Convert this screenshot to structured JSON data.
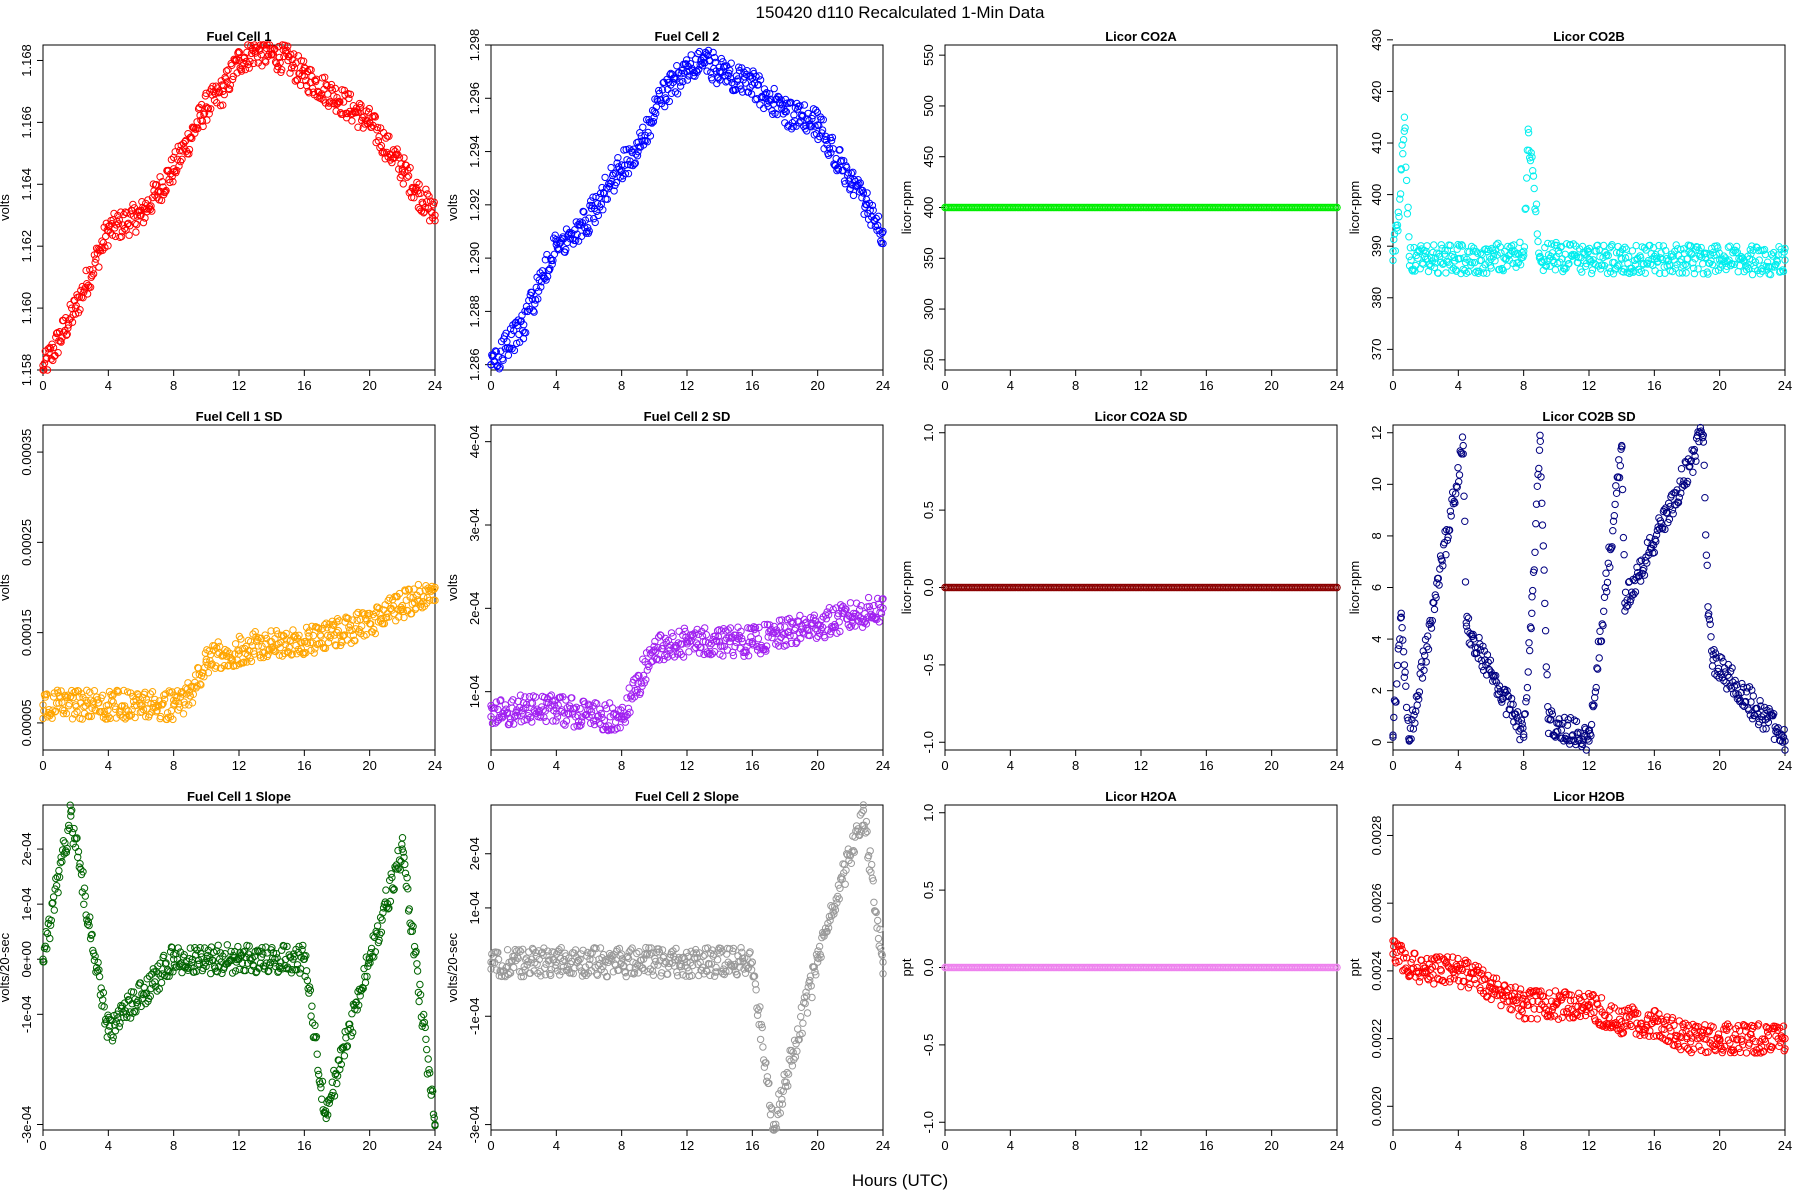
{
  "figure": {
    "title": "150420   d110   Recalculated 1-Min Data",
    "xlabel": "Hours (UTC)"
  },
  "chart_data": [
    {
      "type": "scatter",
      "title": "Fuel Cell 1",
      "ylabel": "volts",
      "xlim": [
        0,
        24
      ],
      "ylim": [
        1.158,
        1.1685
      ],
      "xticks": [
        "0",
        "4",
        "8",
        "12",
        "16",
        "20",
        "24"
      ],
      "yticks": [
        "1.158",
        "1.160",
        "1.162",
        "1.164",
        "1.166",
        "1.168"
      ],
      "color": "#ff0000",
      "series": [
        {
          "x": [
            0,
            2,
            4,
            6,
            8,
            9,
            10,
            11,
            12,
            13,
            14,
            15,
            16,
            18,
            20,
            22,
            23,
            24
          ],
          "y": [
            1.158,
            1.16,
            1.1625,
            1.163,
            1.1645,
            1.1655,
            1.1665,
            1.167,
            1.168,
            1.1683,
            1.1682,
            1.168,
            1.1675,
            1.1668,
            1.166,
            1.1645,
            1.1637,
            1.163
          ]
        }
      ]
    },
    {
      "type": "scatter",
      "title": "Fuel Cell 2",
      "ylabel": "volts",
      "xlim": [
        0,
        24
      ],
      "ylim": [
        1.2858,
        1.298
      ],
      "xticks": [
        "0",
        "4",
        "8",
        "12",
        "16",
        "20",
        "24"
      ],
      "yticks": [
        "1.286",
        "1.288",
        "1.290",
        "1.292",
        "1.294",
        "1.296",
        "1.298"
      ],
      "color": "#0000ff",
      "series": [
        {
          "x": [
            0,
            2,
            4,
            6,
            8,
            9,
            10,
            11,
            12,
            13,
            14,
            16,
            18,
            20,
            22,
            23,
            24
          ],
          "y": [
            1.286,
            1.2875,
            1.2905,
            1.2915,
            1.2935,
            1.294,
            1.2955,
            1.2965,
            1.297,
            1.2975,
            1.297,
            1.2965,
            1.2955,
            1.295,
            1.293,
            1.292,
            1.291
          ]
        }
      ]
    },
    {
      "type": "scatter",
      "title": "Licor CO2A",
      "ylabel": "licor-ppm",
      "xlim": [
        0,
        24
      ],
      "ylim": [
        240,
        560
      ],
      "xticks": [
        "0",
        "4",
        "8",
        "12",
        "16",
        "20",
        "24"
      ],
      "yticks": [
        "250",
        "300",
        "350",
        "400",
        "450",
        "500",
        "550"
      ],
      "color": "#00ee00",
      "series": [
        {
          "x": [
            0,
            24
          ],
          "y": [
            400,
            400
          ]
        }
      ]
    },
    {
      "type": "scatter",
      "title": "Licor CO2B",
      "ylabel": "licor-ppm",
      "xlim": [
        0,
        24
      ],
      "ylim": [
        366,
        429
      ],
      "xticks": [
        "0",
        "4",
        "8",
        "12",
        "16",
        "20",
        "24"
      ],
      "yticks": [
        "370",
        "380",
        "390",
        "400",
        "410",
        "420",
        "430"
      ],
      "color": "#00eeee",
      "series": [
        {
          "x": [
            0,
            0.3,
            0.5,
            0.7,
            1,
            2,
            4,
            6,
            8,
            8.3,
            9,
            10,
            12,
            14,
            16,
            18,
            20,
            22,
            24
          ],
          "y": [
            389,
            393,
            405,
            415,
            388,
            387.5,
            387.5,
            387.5,
            389,
            412,
            388,
            388,
            387.5,
            387.5,
            387.5,
            387.5,
            387.3,
            387.3,
            387.3
          ]
        }
      ]
    },
    {
      "type": "scatter",
      "title": "Fuel Cell 1 SD",
      "ylabel": "volts",
      "xlim": [
        0,
        24
      ],
      "ylim": [
        2e-05,
        0.00038
      ],
      "xticks": [
        "0",
        "4",
        "8",
        "12",
        "16",
        "20",
        "24"
      ],
      "yticks": [
        "0.00005",
        "0.00015",
        "0.00025",
        "0.00035"
      ],
      "color": "#ffa500",
      "series": [
        {
          "x": [
            0,
            2,
            4,
            6,
            8,
            9,
            10,
            12,
            14,
            16,
            18,
            20,
            22,
            24
          ],
          "y": [
            7e-05,
            7e-05,
            7e-05,
            7e-05,
            7e-05,
            8e-05,
            0.00012,
            0.00013,
            0.00014,
            0.00014,
            0.00015,
            0.00016,
            0.00018,
            0.0002
          ]
        }
      ]
    },
    {
      "type": "scatter",
      "title": "Fuel Cell 2 SD",
      "ylabel": "volts",
      "xlim": [
        0,
        24
      ],
      "ylim": [
        3e-05,
        0.00042
      ],
      "xticks": [
        "0",
        "4",
        "8",
        "12",
        "16",
        "20",
        "24"
      ],
      "yticks": [
        "1e-04",
        "2e-04",
        "3e-04",
        "4e-04"
      ],
      "color": "#a020f0",
      "series": [
        {
          "x": [
            0,
            2,
            4,
            6,
            8,
            9,
            10,
            12,
            14,
            16,
            18,
            20,
            22,
            24
          ],
          "y": [
            7e-05,
            8e-05,
            8e-05,
            7e-05,
            7e-05,
            0.00011,
            0.00015,
            0.00016,
            0.00016,
            0.00016,
            0.00017,
            0.00018,
            0.00019,
            0.0002
          ]
        }
      ]
    },
    {
      "type": "scatter",
      "title": "Licor CO2A SD",
      "ylabel": "licor-ppm",
      "xlim": [
        0,
        24
      ],
      "ylim": [
        -1.05,
        1.05
      ],
      "xticks": [
        "0",
        "4",
        "8",
        "12",
        "16",
        "20",
        "24"
      ],
      "yticks": [
        "-1.0",
        "-0.5",
        "0.0",
        "0.5",
        "1.0"
      ],
      "color": "#8b0000",
      "series": [
        {
          "x": [
            0,
            24
          ],
          "y": [
            0,
            0
          ]
        }
      ]
    },
    {
      "type": "scatter",
      "title": "Licor CO2B SD",
      "ylabel": "licor-ppm",
      "xlim": [
        0,
        24
      ],
      "ylim": [
        -0.3,
        12.3
      ],
      "xticks": [
        "0",
        "4",
        "8",
        "12",
        "16",
        "20",
        "24"
      ],
      "yticks": [
        "0",
        "2",
        "4",
        "6",
        "8",
        "10",
        "12"
      ],
      "color": "#000080",
      "series": [
        {
          "x": [
            0,
            0.5,
            0.7,
            1,
            4.3,
            4.5,
            8,
            8.5,
            9,
            9.5,
            12,
            14,
            14.2,
            19,
            19.3,
            19.6,
            24
          ],
          "y": [
            0.2,
            5,
            3,
            0.05,
            11.5,
            4.5,
            0.3,
            5,
            11.9,
            0.9,
            0.05,
            11.5,
            5.4,
            11.9,
            4.9,
            3.2,
            0.05
          ]
        }
      ]
    },
    {
      "type": "scatter",
      "title": "Fuel Cell 1 Slope",
      "ylabel": "volts/20-sec",
      "xlim": [
        0,
        24
      ],
      "ylim": [
        -0.00031,
        0.00028
      ],
      "xticks": [
        "0",
        "4",
        "8",
        "12",
        "16",
        "20",
        "24"
      ],
      "yticks": [
        "-3e-04",
        "-1e-04",
        "0e+00",
        "1e-04",
        "2e-04"
      ],
      "color": "#006400",
      "series": [
        {
          "x": [
            0,
            1.7,
            4,
            8,
            12,
            16,
            17.3,
            20,
            22,
            24
          ],
          "y": [
            0,
            0.00026,
            -0.00013,
            0,
            0,
            0,
            -0.00028,
            0,
            0.0002,
            -0.0003
          ]
        }
      ]
    },
    {
      "type": "scatter",
      "title": "Fuel Cell 2 Slope",
      "ylabel": "volts/20-sec",
      "xlim": [
        0,
        24
      ],
      "ylim": [
        -0.00031,
        0.00029
      ],
      "xticks": [
        "0",
        "4",
        "8",
        "12",
        "16",
        "20",
        "24"
      ],
      "yticks": [
        "-3e-04",
        "-1e-04",
        "1e-04",
        "2e-04"
      ],
      "color": "#999999",
      "series": [
        {
          "x": [
            0,
            4,
            8,
            12,
            16,
            17.3,
            20,
            22.8,
            24
          ],
          "y": [
            0,
            0,
            0,
            0,
            0,
            -0.0003,
            0,
            0.00028,
            0
          ]
        }
      ]
    },
    {
      "type": "scatter",
      "title": "Licor H2OA",
      "ylabel": "ppt",
      "xlim": [
        0,
        24
      ],
      "ylim": [
        -1.05,
        1.05
      ],
      "xticks": [
        "0",
        "4",
        "8",
        "12",
        "16",
        "20",
        "24"
      ],
      "yticks": [
        "-1.0",
        "-0.5",
        "0.0",
        "0.5",
        "1.0"
      ],
      "color": "#ee82ee",
      "series": [
        {
          "x": [
            0,
            24
          ],
          "y": [
            0,
            0
          ]
        }
      ]
    },
    {
      "type": "scatter",
      "title": "Licor H2OB",
      "ylabel": "ppt",
      "xlim": [
        0,
        24
      ],
      "ylim": [
        0.00193,
        0.00289
      ],
      "xticks": [
        "0",
        "4",
        "8",
        "12",
        "16",
        "20",
        "24"
      ],
      "yticks": [
        "0.0020",
        "0.0022",
        "0.0024",
        "0.0026",
        "0.0028"
      ],
      "color": "#ff0000",
      "series": [
        {
          "x": [
            0,
            2,
            4,
            6,
            8,
            10,
            12,
            14,
            16,
            18,
            20,
            22,
            24
          ],
          "y": [
            0.00245,
            0.0024,
            0.0024,
            0.00235,
            0.0023,
            0.0023,
            0.0023,
            0.00225,
            0.00225,
            0.0022,
            0.0022,
            0.0022,
            0.0022
          ]
        }
      ]
    }
  ]
}
